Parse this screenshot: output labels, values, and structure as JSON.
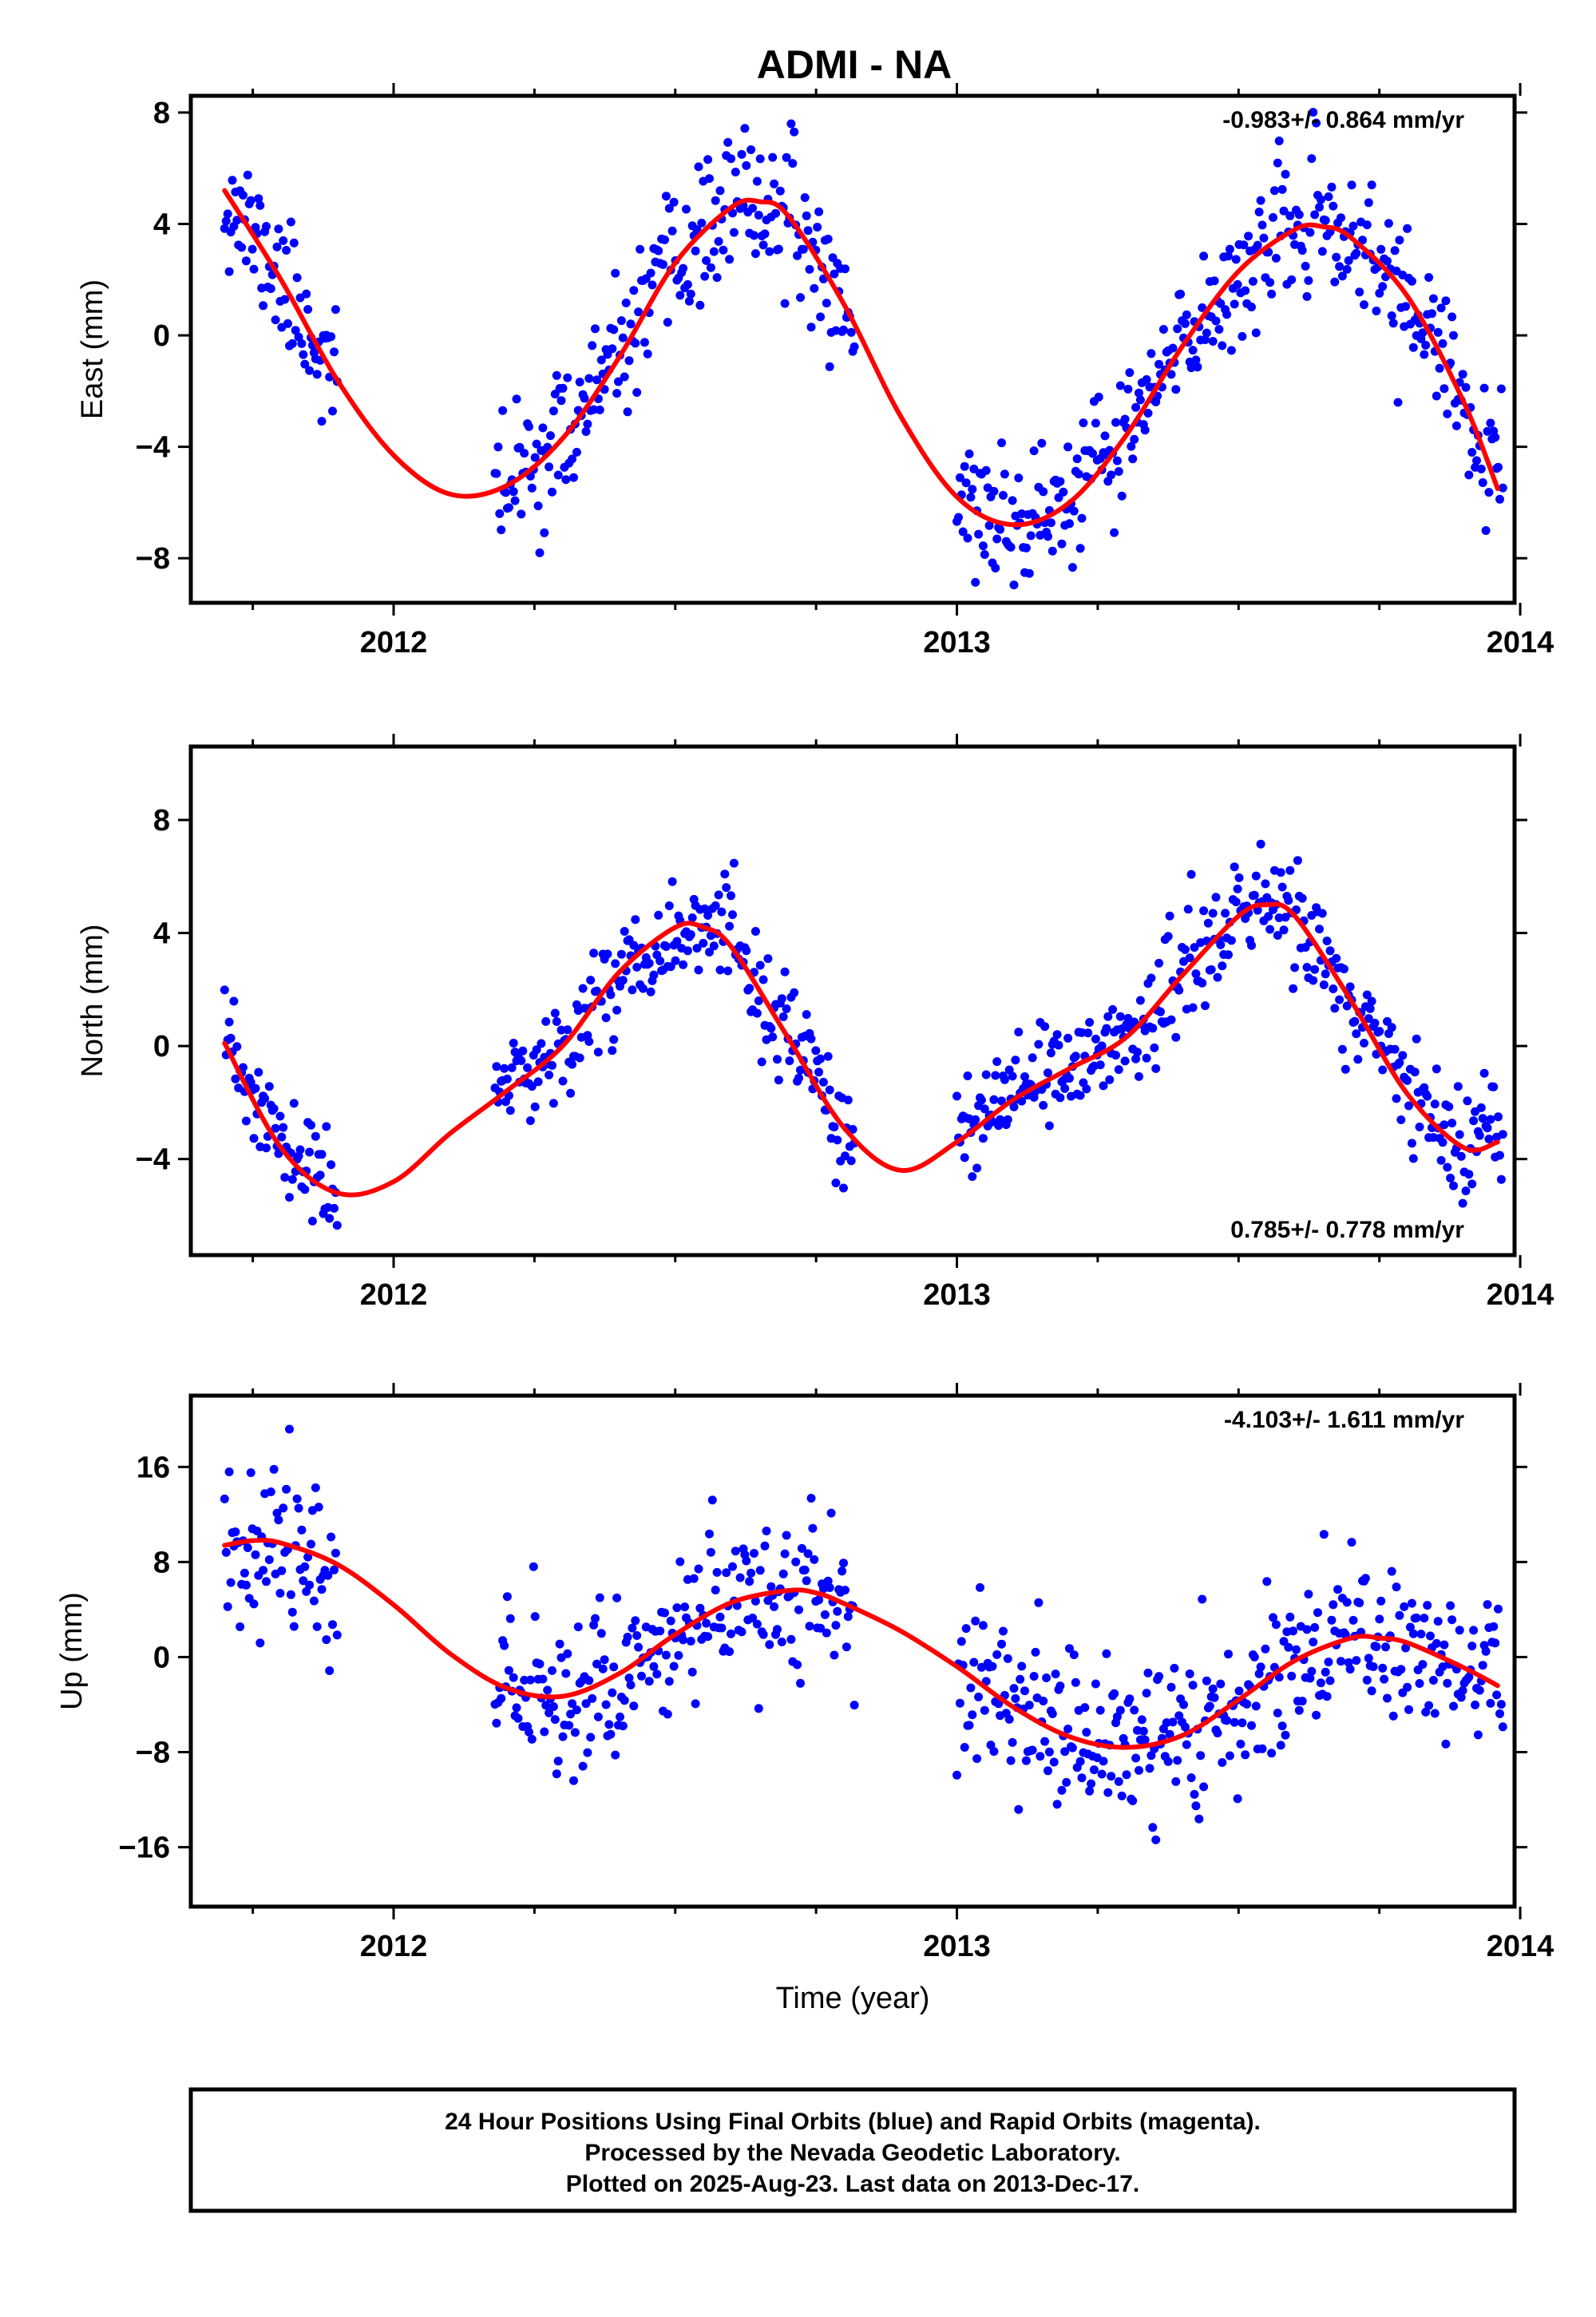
{
  "title": "ADMI - NA",
  "colors": {
    "points": "#0000ff",
    "fit": "#ff0000",
    "frame": "#000000",
    "background": "#ffffff"
  },
  "chart_data": [
    {
      "type": "scatter",
      "panel": "east",
      "ylabel": "East (mm)",
      "xlabel": "",
      "xlim": [
        2011.64,
        2013.99
      ],
      "ylim": [
        -9.6,
        8.6
      ],
      "xticks": [
        2012,
        2013,
        2014
      ],
      "xtick_labels": [
        "2012",
        "2013",
        "2014"
      ],
      "yticks": [
        -8,
        -4,
        0,
        4,
        8
      ],
      "ytick_labels": [
        "−8",
        "−4",
        "0",
        "4",
        "8"
      ],
      "rate_text": "-0.983+/- 0.864 mm/yr",
      "rate_position": "top-right",
      "segments": [
        [
          2011.7,
          2011.9
        ],
        [
          2012.18,
          2012.82
        ],
        [
          2013.0,
          2013.97
        ]
      ],
      "fit": {
        "name": "",
        "x": [
          2011.7,
          2011.8,
          2011.9,
          2012.0,
          2012.1,
          2012.2,
          2012.3,
          2012.4,
          2012.5,
          2012.6,
          2012.65,
          2012.7,
          2012.8,
          2012.9,
          2013.0,
          2013.1,
          2013.2,
          2013.3,
          2013.4,
          2013.5,
          2013.6,
          2013.65,
          2013.7,
          2013.8,
          2013.9,
          2013.96
        ],
        "y": [
          5.2,
          2.0,
          -1.6,
          -4.3,
          -5.7,
          -5.4,
          -3.7,
          -0.8,
          2.6,
          4.6,
          4.8,
          4.3,
          1.1,
          -2.9,
          -5.8,
          -6.8,
          -6.0,
          -3.6,
          -0.4,
          2.3,
          3.8,
          3.9,
          3.5,
          1.4,
          -2.4,
          -5.5
        ]
      },
      "points": {
        "seed": 11,
        "scatter_sd": 1.2
      }
    },
    {
      "type": "scatter",
      "panel": "north",
      "ylabel": "North (mm)",
      "xlabel": "",
      "xlim": [
        2011.64,
        2013.99
      ],
      "ylim": [
        -7.4,
        10.6
      ],
      "xticks": [
        2012,
        2013,
        2014
      ],
      "xtick_labels": [
        "2012",
        "2013",
        "2014"
      ],
      "yticks": [
        -4,
        0,
        4,
        8
      ],
      "ytick_labels": [
        "−4",
        "0",
        "4",
        "8"
      ],
      "rate_text": "0.785+/- 0.778 mm/yr",
      "rate_position": "bottom-right",
      "segments": [
        [
          2011.7,
          2011.9
        ],
        [
          2012.18,
          2012.82
        ],
        [
          2013.0,
          2013.97
        ]
      ],
      "fit": {
        "name": "",
        "x": [
          2011.7,
          2011.8,
          2011.9,
          2012.0,
          2012.1,
          2012.2,
          2012.3,
          2012.4,
          2012.5,
          2012.55,
          2012.6,
          2012.7,
          2012.8,
          2012.9,
          2013.0,
          2013.1,
          2013.2,
          2013.3,
          2013.4,
          2013.5,
          2013.55,
          2013.6,
          2013.7,
          2013.8,
          2013.9,
          2013.96
        ],
        "y": [
          0.1,
          -3.6,
          -5.2,
          -4.8,
          -3.1,
          -1.6,
          0.0,
          2.6,
          4.2,
          4.2,
          3.5,
          0.3,
          -2.9,
          -4.4,
          -3.4,
          -1.9,
          -0.8,
          0.3,
          2.5,
          4.6,
          5.0,
          4.6,
          1.6,
          -1.7,
          -3.6,
          -3.4
        ]
      },
      "points": {
        "seed": 23,
        "scatter_sd": 0.95
      }
    },
    {
      "type": "scatter",
      "panel": "up",
      "ylabel": "Up (mm)",
      "xlabel": "Time (year)",
      "xlim": [
        2011.64,
        2013.99
      ],
      "ylim": [
        -21,
        22
      ],
      "xticks": [
        2012,
        2013,
        2014
      ],
      "xtick_labels": [
        "2012",
        "2013",
        "2014"
      ],
      "yticks": [
        -16,
        -8,
        0,
        8,
        16
      ],
      "ytick_labels": [
        "−16",
        "−8",
        "0",
        "8",
        "16"
      ],
      "rate_text": "-4.103+/- 1.611 mm/yr",
      "rate_position": "top-right",
      "segments": [
        [
          2011.7,
          2011.9
        ],
        [
          2012.18,
          2012.82
        ],
        [
          2013.0,
          2013.97
        ]
      ],
      "fit": {
        "name": "",
        "x": [
          2011.7,
          2011.75,
          2011.8,
          2011.9,
          2012.0,
          2012.1,
          2012.2,
          2012.3,
          2012.4,
          2012.5,
          2012.6,
          2012.7,
          2012.75,
          2012.8,
          2012.9,
          2013.0,
          2013.1,
          2013.2,
          2013.3,
          2013.4,
          2013.5,
          2013.6,
          2013.7,
          2013.75,
          2013.8,
          2013.9,
          2013.96
        ],
        "y": [
          9.4,
          9.8,
          9.6,
          7.8,
          4.4,
          0.3,
          -2.6,
          -3.3,
          -1.4,
          1.9,
          4.6,
          5.6,
          5.4,
          4.5,
          2.2,
          -0.8,
          -4.2,
          -6.7,
          -7.6,
          -6.6,
          -3.6,
          -0.3,
          1.6,
          1.6,
          1.2,
          -0.9,
          -2.4
        ]
      },
      "points": {
        "seed": 37,
        "scatter_sd": 3.4
      }
    }
  ],
  "footer": {
    "line1": "24 Hour Positions Using Final Orbits (blue) and Rapid Orbits (magenta).",
    "line2": "Processed by the Nevada Geodetic Laboratory.",
    "line3": "Plotted on 2025-Aug-23. Last data on 2013-Dec-17."
  }
}
